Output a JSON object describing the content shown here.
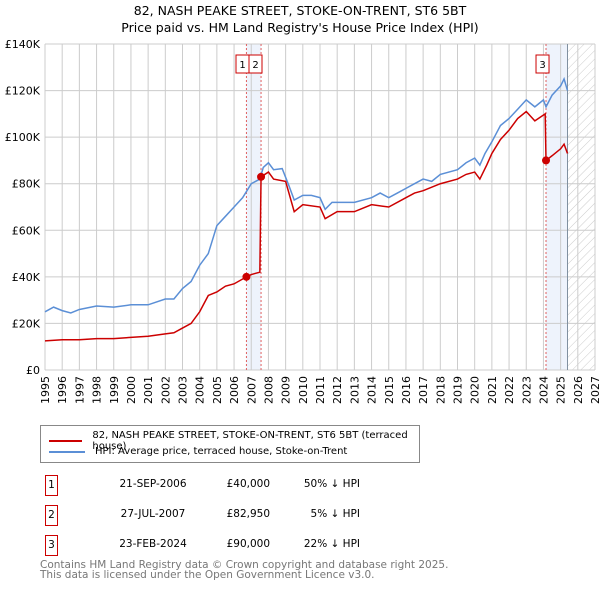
{
  "chart_data": {
    "type": "line",
    "title": "82, NASH PEAKE STREET, STOKE-ON-TRENT, ST6 5BT",
    "subtitle": "Price paid vs. HM Land Registry's House Price Index (HPI)",
    "xlim": [
      1995,
      2027
    ],
    "ylim": [
      0,
      140000
    ],
    "xticks": [
      "1995",
      "1996",
      "1997",
      "1998",
      "1999",
      "2000",
      "2001",
      "2002",
      "2003",
      "2004",
      "2005",
      "2006",
      "2007",
      "2008",
      "2009",
      "2010",
      "2011",
      "2012",
      "2013",
      "2014",
      "2015",
      "2016",
      "2017",
      "2018",
      "2019",
      "2020",
      "2021",
      "2022",
      "2023",
      "2024",
      "2025",
      "2026",
      "2027"
    ],
    "yticks": [
      {
        "v": 0,
        "label": "£0"
      },
      {
        "v": 20000,
        "label": "£20K"
      },
      {
        "v": 40000,
        "label": "£40K"
      },
      {
        "v": 60000,
        "label": "£60K"
      },
      {
        "v": 80000,
        "label": "£80K"
      },
      {
        "v": 100000,
        "label": "£100K"
      },
      {
        "v": 120000,
        "label": "£120K"
      },
      {
        "v": 140000,
        "label": "£140K"
      }
    ],
    "grid": true,
    "series": [
      {
        "name": "82, NASH PEAKE STREET, STOKE-ON-TRENT, ST6 5BT (terraced house)",
        "color": "#cc0000",
        "x": [
          1995,
          1996,
          1997,
          1998,
          1999,
          2000,
          2001,
          2002,
          2002.5,
          2003,
          2003.5,
          2004,
          2004.5,
          2005,
          2005.5,
          2006,
          2006.72,
          2007,
          2007.5,
          2007.57,
          2008,
          2008.3,
          2009,
          2009.5,
          2010,
          2011,
          2011.3,
          2012,
          2013,
          2014,
          2015,
          2016,
          2016.5,
          2017,
          2018,
          2019,
          2019.5,
          2020,
          2020.3,
          2020.7,
          2021,
          2021.5,
          2022,
          2022.5,
          2023,
          2023.5,
          2024.1,
          2024.15,
          2024.5,
          2025,
          2025.2,
          2025.4
        ],
        "y": [
          12500,
          13000,
          13000,
          13500,
          13500,
          14000,
          14500,
          15500,
          16000,
          18000,
          20000,
          25000,
          32000,
          33500,
          36000,
          37000,
          40000,
          41000,
          42000,
          82950,
          85000,
          82000,
          81000,
          68000,
          71000,
          70000,
          65000,
          68000,
          68000,
          71000,
          70000,
          74000,
          76000,
          77000,
          80000,
          82000,
          84000,
          85000,
          82000,
          88000,
          93000,
          99000,
          103000,
          108000,
          111000,
          107000,
          110000,
          90000,
          92000,
          95000,
          97000,
          93000
        ]
      },
      {
        "name": "HPI: Average price, terraced house, Stoke-on-Trent",
        "color": "#5b8fd6",
        "x": [
          1995,
          1995.5,
          1996,
          1996.5,
          1997,
          1998,
          1999,
          2000,
          2001,
          2002,
          2002.5,
          2003,
          2003.5,
          2004,
          2004.5,
          2005,
          2005.5,
          2006,
          2006.5,
          2007,
          2007.5,
          2007.7,
          2008,
          2008.3,
          2008.8,
          2009.2,
          2009.5,
          2010,
          2010.5,
          2011,
          2011.3,
          2011.7,
          2012,
          2013,
          2014,
          2014.5,
          2015,
          2015.5,
          2016,
          2016.5,
          2017,
          2017.5,
          2018,
          2019,
          2019.5,
          2020,
          2020.3,
          2020.6,
          2021,
          2021.5,
          2022,
          2022.5,
          2023,
          2023.5,
          2024,
          2024.15,
          2024.5,
          2025,
          2025.2,
          2025.4
        ],
        "y": [
          25000,
          27000,
          25500,
          24500,
          26000,
          27500,
          27000,
          28000,
          28000,
          30500,
          30500,
          35000,
          38000,
          45000,
          50000,
          62000,
          66000,
          70000,
          74000,
          80000,
          82000,
          87000,
          89000,
          86000,
          86500,
          79000,
          73000,
          75000,
          75000,
          74000,
          69000,
          72000,
          72000,
          72000,
          74000,
          76000,
          74000,
          76000,
          78000,
          80000,
          82000,
          81000,
          84000,
          86000,
          89000,
          91000,
          88000,
          93000,
          98000,
          105000,
          108000,
          112000,
          116000,
          113000,
          116000,
          113000,
          118000,
          122000,
          125000,
          120000
        ]
      }
    ],
    "annotations": [
      {
        "num": "1",
        "x": 2006.72,
        "y": 40000
      },
      {
        "num": "2",
        "x": 2007.57,
        "y": 82950
      },
      {
        "num": "3",
        "x": 2024.15,
        "y": 90000
      }
    ],
    "forecast_from": 2025.4
  },
  "legend": {
    "property": "82, NASH PEAKE STREET, STOKE-ON-TRENT, ST6 5BT (terraced house)",
    "hpi": "HPI: Average price, terraced house, Stoke-on-Trent"
  },
  "transactions": [
    {
      "num": "1",
      "date": "21-SEP-2006",
      "price": "£40,000",
      "pct": "50% ↓ HPI"
    },
    {
      "num": "2",
      "date": "27-JUL-2007",
      "price": "£82,950",
      "pct": "5% ↓ HPI"
    },
    {
      "num": "3",
      "date": "23-FEB-2024",
      "price": "£90,000",
      "pct": "22% ↓ HPI"
    }
  ],
  "footer": {
    "line1": "Contains HM Land Registry data © Crown copyright and database right 2025.",
    "line2": "This data is licensed under the Open Government Licence v3.0."
  }
}
